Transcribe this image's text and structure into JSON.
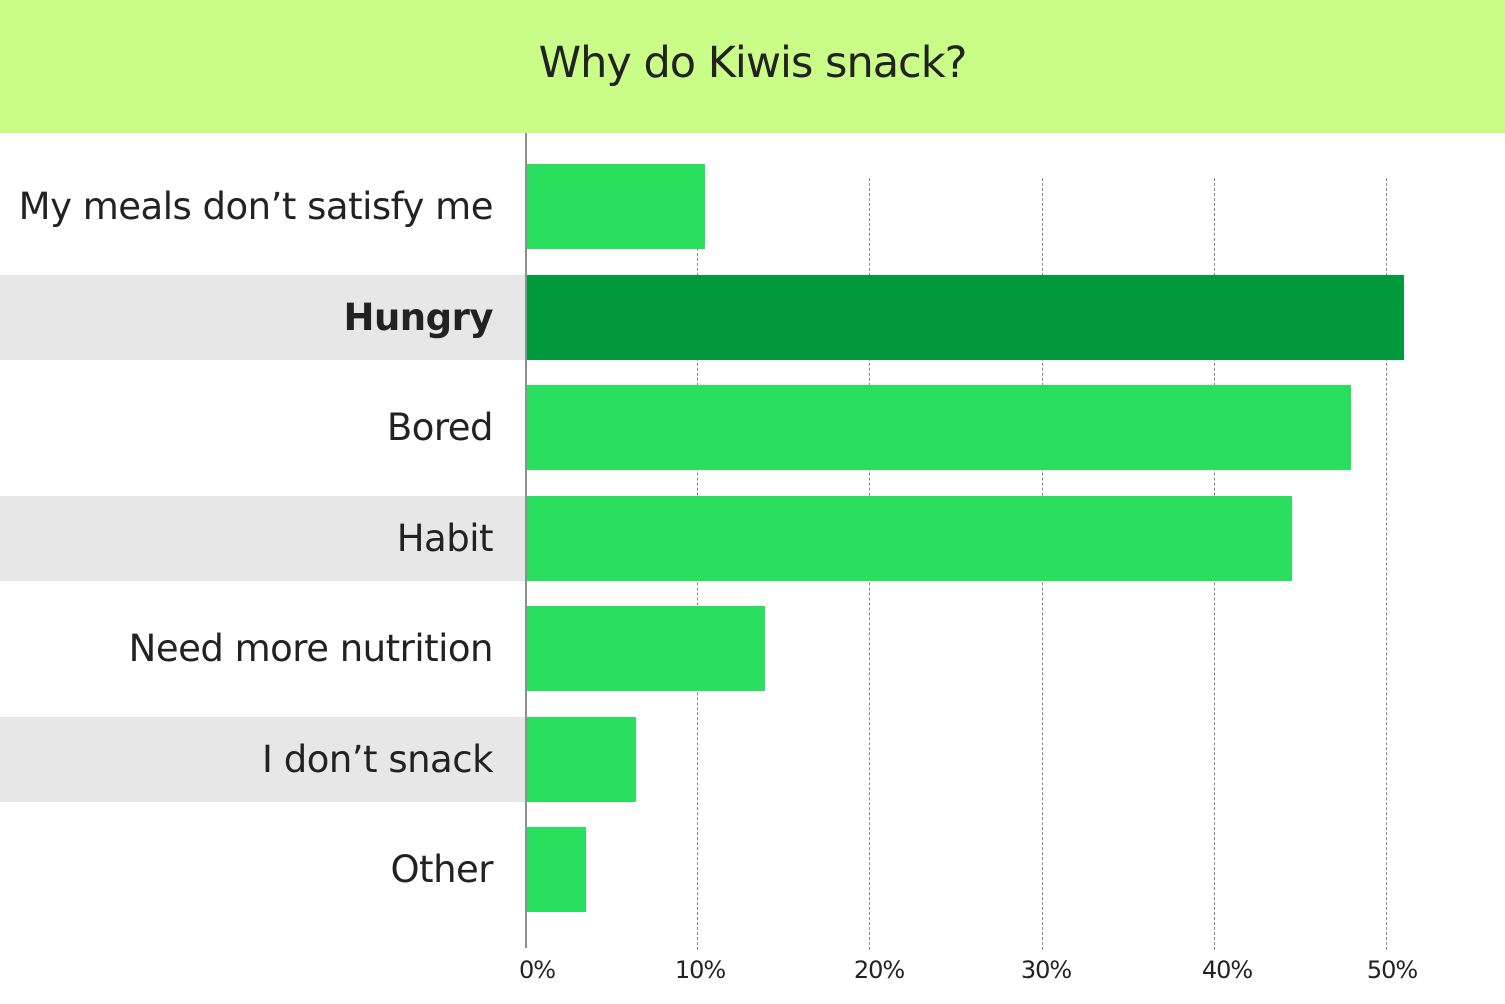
{
  "header": {
    "title": "Why do Kiwis snack?"
  },
  "colors": {
    "header_bg": "#c9fd88",
    "bar": "#2adf5e",
    "bar_highlight": "#009a3c",
    "band": "#e7e7e7"
  },
  "chart_data": {
    "type": "bar",
    "orientation": "horizontal",
    "title": "Why do Kiwis snack?",
    "xlabel": "",
    "ylabel": "",
    "categories": [
      "My meals don’t satisfy me",
      "Hungry",
      "Bored",
      "Habit",
      "Need more nutrition",
      "I don’t snack",
      "Other"
    ],
    "values": [
      10.4,
      51.0,
      47.9,
      44.5,
      13.9,
      6.4,
      3.5
    ],
    "unit": "%",
    "highlighted": "Hungry",
    "xlim": [
      0,
      50
    ],
    "xticks": [
      "0%",
      "10%",
      "20%",
      "30%",
      "40%",
      "50%"
    ],
    "grid": "vertical dashed"
  }
}
